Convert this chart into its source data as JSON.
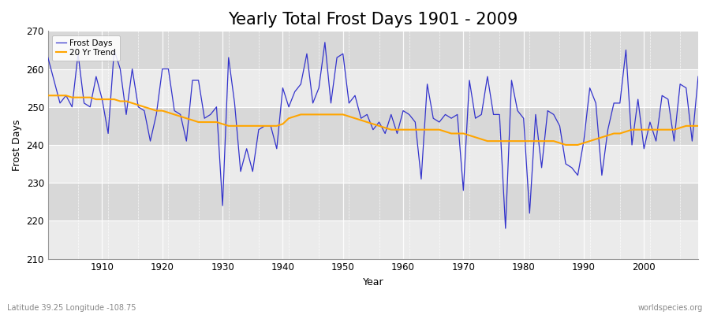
{
  "title": "Yearly Total Frost Days 1901 - 2009",
  "xlabel": "Year",
  "ylabel": "Frost Days",
  "subtitle_left": "Latitude 39.25 Longitude -108.75",
  "subtitle_right": "worldspecies.org",
  "years": [
    1901,
    1902,
    1903,
    1904,
    1905,
    1906,
    1907,
    1908,
    1909,
    1910,
    1911,
    1912,
    1913,
    1914,
    1915,
    1916,
    1917,
    1918,
    1919,
    1920,
    1921,
    1922,
    1923,
    1924,
    1925,
    1926,
    1927,
    1928,
    1929,
    1930,
    1931,
    1932,
    1933,
    1934,
    1935,
    1936,
    1937,
    1938,
    1939,
    1940,
    1941,
    1942,
    1943,
    1944,
    1945,
    1946,
    1947,
    1948,
    1949,
    1950,
    1951,
    1952,
    1953,
    1954,
    1955,
    1956,
    1957,
    1958,
    1959,
    1960,
    1961,
    1962,
    1963,
    1964,
    1965,
    1966,
    1967,
    1968,
    1969,
    1970,
    1971,
    1972,
    1973,
    1974,
    1975,
    1976,
    1977,
    1978,
    1979,
    1980,
    1981,
    1982,
    1983,
    1984,
    1985,
    1986,
    1987,
    1988,
    1989,
    1990,
    1991,
    1992,
    1993,
    1994,
    1995,
    1996,
    1997,
    1998,
    1999,
    2000,
    2001,
    2002,
    2003,
    2004,
    2005,
    2006,
    2007,
    2008,
    2009
  ],
  "frost_days": [
    263,
    257,
    251,
    253,
    250,
    264,
    251,
    250,
    258,
    252,
    243,
    265,
    260,
    248,
    260,
    250,
    249,
    241,
    248,
    260,
    260,
    249,
    248,
    241,
    257,
    257,
    247,
    248,
    250,
    224,
    263,
    251,
    233,
    239,
    233,
    244,
    245,
    245,
    239,
    255,
    250,
    254,
    256,
    264,
    251,
    255,
    267,
    251,
    263,
    264,
    251,
    253,
    247,
    248,
    244,
    246,
    243,
    248,
    243,
    249,
    248,
    246,
    231,
    256,
    247,
    246,
    248,
    247,
    248,
    228,
    257,
    247,
    248,
    258,
    248,
    248,
    218,
    257,
    249,
    247,
    222,
    248,
    234,
    249,
    248,
    245,
    235,
    234,
    232,
    241,
    255,
    251,
    232,
    244,
    251,
    251,
    265,
    240,
    252,
    239,
    246,
    241,
    253,
    252,
    241,
    256,
    255,
    241,
    258
  ],
  "trend_values": [
    253.0,
    253.0,
    253.0,
    253.0,
    252.5,
    252.5,
    252.5,
    252.5,
    252.0,
    252.0,
    252.0,
    252.0,
    251.5,
    251.5,
    251.0,
    250.5,
    250.0,
    249.5,
    249.0,
    249.0,
    248.5,
    248.0,
    247.5,
    247.0,
    246.5,
    246.0,
    246.0,
    246.0,
    246.0,
    245.5,
    245.0,
    245.0,
    245.0,
    245.0,
    245.0,
    245.0,
    245.0,
    245.0,
    245.0,
    245.5,
    247.0,
    247.5,
    248.0,
    248.0,
    248.0,
    248.0,
    248.0,
    248.0,
    248.0,
    248.0,
    247.5,
    247.0,
    246.5,
    246.0,
    245.5,
    245.0,
    244.5,
    244.0,
    244.0,
    244.0,
    244.0,
    244.0,
    244.0,
    244.0,
    244.0,
    244.0,
    243.5,
    243.0,
    243.0,
    243.0,
    242.5,
    242.0,
    241.5,
    241.0,
    241.0,
    241.0,
    241.0,
    241.0,
    241.0,
    241.0,
    241.0,
    241.0,
    241.0,
    241.0,
    241.0,
    240.5,
    240.0,
    240.0,
    240.0,
    240.5,
    241.0,
    241.5,
    242.0,
    242.5,
    243.0,
    243.0,
    243.5,
    244.0,
    244.0,
    244.0,
    244.0,
    244.0,
    244.0,
    244.0,
    244.0,
    244.5,
    245.0,
    245.0,
    245.0
  ],
  "line_color": "#3333cc",
  "trend_color": "#FFA500",
  "fig_bg_color": "#ffffff",
  "plot_bg_light": "#ebebeb",
  "plot_bg_dark": "#d8d8d8",
  "ylim": [
    210,
    270
  ],
  "yticks": [
    210,
    220,
    230,
    240,
    250,
    260,
    270
  ],
  "xlim_left": 1901,
  "xlim_right": 2009,
  "title_fontsize": 15,
  "axis_label_fontsize": 9,
  "tick_fontsize": 8.5
}
